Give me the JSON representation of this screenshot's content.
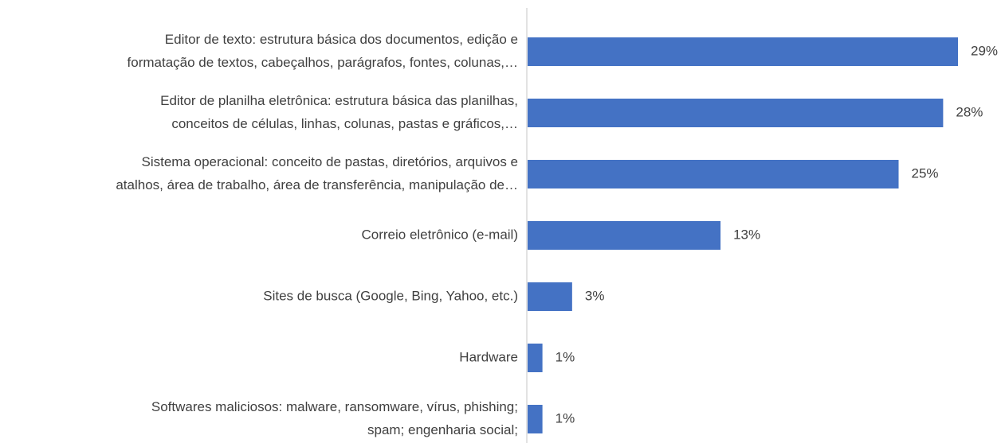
{
  "chart_data": {
    "type": "bar",
    "orientation": "horizontal",
    "categories": [
      [
        "Editor de texto: estrutura básica dos documentos, edição e",
        "formatação de textos, cabeçalhos, parágrafos, fontes, colunas,…"
      ],
      [
        "Editor de planilha eletrônica: estrutura básica das planilhas,",
        "conceitos de células, linhas, colunas, pastas e gráficos,…"
      ],
      [
        "Sistema operacional: conceito de pastas, diretórios, arquivos e",
        "atalhos, área de trabalho, área de transferência, manipulação de…"
      ],
      [
        "Correio eletrônico (e-mail)"
      ],
      [
        "Sites de busca (Google, Bing, Yahoo, etc.)"
      ],
      [
        "Hardware"
      ],
      [
        "Softwares maliciosos: malware, ransomware, vírus, phishing;",
        "spam; engenharia social;"
      ]
    ],
    "values": [
      29,
      28,
      25,
      13,
      3,
      1,
      1
    ],
    "value_labels": [
      "29%",
      "28%",
      "25%",
      "13%",
      "3%",
      "1%",
      "1%"
    ],
    "color": "#4472c4"
  }
}
